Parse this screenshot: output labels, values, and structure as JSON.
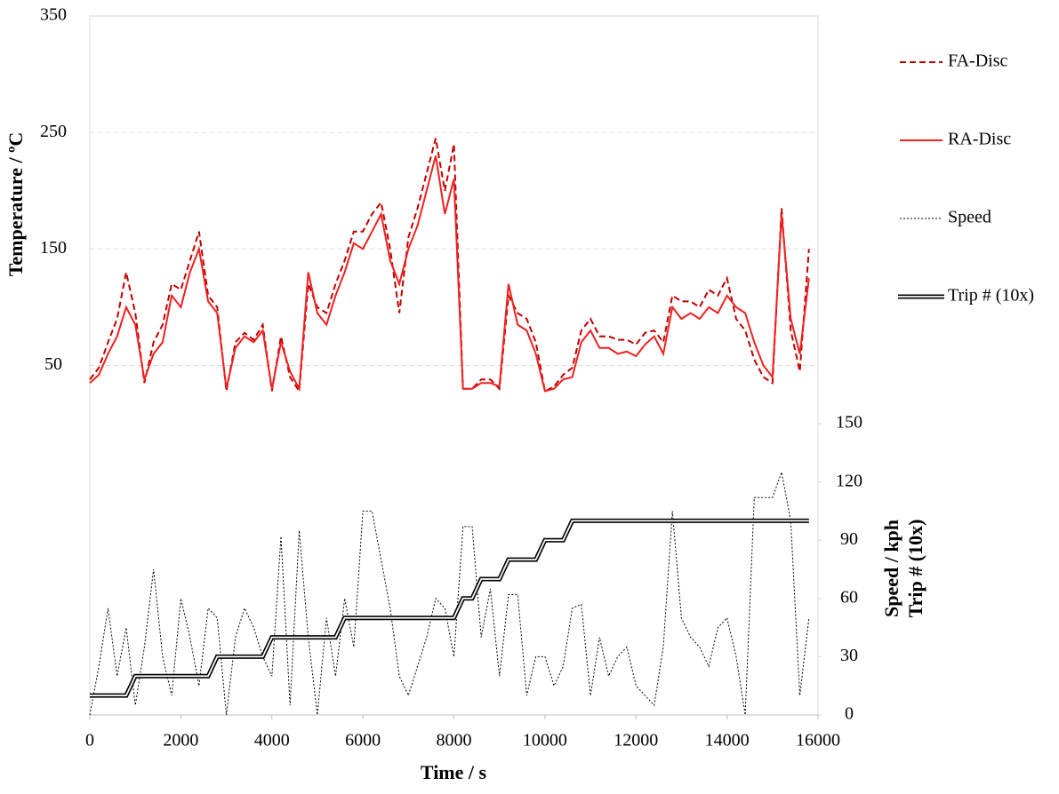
{
  "chart_data": {
    "type": "line",
    "xlabel": "Time / s",
    "ylabel": "Temperature / ºC",
    "y2label": [
      "Speed / kph",
      "Trip # (10x)"
    ],
    "xlim": [
      0,
      16000
    ],
    "xticks": [
      0,
      2000,
      4000,
      6000,
      8000,
      10000,
      12000,
      14000,
      16000
    ],
    "ylim": [
      -250,
      350
    ],
    "yticks": [
      50,
      150,
      250,
      350
    ],
    "y2lim": [
      0,
      360
    ],
    "y2ticks": [
      0,
      30,
      60,
      90,
      120,
      150
    ],
    "grid": true,
    "legend": "right",
    "x": [
      0,
      200,
      400,
      600,
      800,
      1000,
      1200,
      1400,
      1600,
      1800,
      2000,
      2200,
      2400,
      2600,
      2800,
      3000,
      3200,
      3400,
      3600,
      3800,
      4000,
      4200,
      4400,
      4600,
      4800,
      5000,
      5200,
      5400,
      5600,
      5800,
      6000,
      6200,
      6400,
      6600,
      6800,
      7000,
      7200,
      7400,
      7600,
      7800,
      8000,
      8200,
      8400,
      8600,
      8800,
      9000,
      9200,
      9400,
      9600,
      9800,
      10000,
      10200,
      10400,
      10600,
      10800,
      11000,
      11200,
      11400,
      11600,
      11800,
      12000,
      12200,
      12400,
      12600,
      12800,
      13000,
      13200,
      13400,
      13600,
      13800,
      14000,
      14200,
      14400,
      14600,
      14800,
      15000,
      15200,
      15400,
      15600,
      15800
    ],
    "series": [
      {
        "name": "FA-Disc",
        "color": "#c00000",
        "dash": "7,4",
        "width": 2,
        "axis": "y",
        "values": [
          38,
          48,
          70,
          90,
          130,
          95,
          35,
          70,
          85,
          120,
          115,
          140,
          165,
          110,
          100,
          28,
          70,
          78,
          72,
          85,
          28,
          75,
          40,
          28,
          120,
          100,
          95,
          120,
          140,
          165,
          165,
          180,
          190,
          150,
          95,
          160,
          185,
          215,
          245,
          200,
          240,
          30,
          30,
          38,
          38,
          30,
          110,
          95,
          90,
          70,
          28,
          32,
          42,
          48,
          80,
          90,
          75,
          75,
          72,
          72,
          68,
          78,
          80,
          70,
          110,
          105,
          105,
          100,
          115,
          110,
          125,
          90,
          80,
          55,
          40,
          35,
          185,
          80,
          45,
          150
        ]
      },
      {
        "name": "RA-Disc",
        "color": "#f02020",
        "dash": "none",
        "width": 2,
        "axis": "y",
        "values": [
          35,
          42,
          60,
          75,
          100,
          85,
          38,
          60,
          70,
          110,
          100,
          130,
          150,
          105,
          95,
          30,
          65,
          75,
          70,
          80,
          30,
          70,
          45,
          30,
          130,
          95,
          85,
          110,
          130,
          155,
          150,
          165,
          180,
          140,
          120,
          150,
          170,
          200,
          230,
          180,
          210,
          30,
          30,
          35,
          35,
          32,
          120,
          85,
          80,
          60,
          28,
          30,
          38,
          40,
          70,
          80,
          65,
          65,
          60,
          62,
          58,
          68,
          75,
          60,
          100,
          90,
          95,
          90,
          100,
          95,
          110,
          100,
          95,
          70,
          50,
          40,
          180,
          90,
          60,
          125
        ]
      },
      {
        "name": "Speed",
        "color": "#000000",
        "dash": "2,2",
        "width": 1,
        "axis": "y2",
        "values": [
          0,
          25,
          55,
          20,
          45,
          5,
          35,
          75,
          30,
          10,
          60,
          40,
          15,
          55,
          50,
          0,
          40,
          55,
          45,
          30,
          20,
          92,
          5,
          95,
          40,
          0,
          50,
          20,
          60,
          35,
          105,
          105,
          80,
          55,
          20,
          10,
          25,
          40,
          60,
          55,
          30,
          97,
          97,
          40,
          65,
          20,
          62,
          62,
          10,
          30,
          30,
          15,
          25,
          55,
          57,
          10,
          40,
          20,
          30,
          35,
          15,
          10,
          5,
          35,
          105,
          50,
          40,
          35,
          25,
          45,
          50,
          30,
          0,
          112,
          112,
          112,
          125,
          100,
          10,
          50
        ]
      },
      {
        "name": "Trip # (10x)",
        "color": "#000000",
        "dash": "double",
        "width": 5,
        "axis": "y2",
        "values": [
          10,
          10,
          10,
          10,
          10,
          20,
          20,
          20,
          20,
          20,
          20,
          20,
          20,
          20,
          30,
          30,
          30,
          30,
          30,
          30,
          40,
          40,
          40,
          40,
          40,
          40,
          40,
          40,
          50,
          50,
          50,
          50,
          50,
          50,
          50,
          50,
          50,
          50,
          50,
          50,
          50,
          60,
          60,
          70,
          70,
          70,
          80,
          80,
          80,
          80,
          90,
          90,
          90,
          100,
          100,
          100,
          100,
          100,
          100,
          100,
          100,
          100,
          100,
          100,
          100,
          100,
          100,
          100,
          100,
          100,
          100,
          100,
          100,
          100,
          100,
          100,
          100,
          100,
          100,
          100
        ]
      }
    ]
  }
}
